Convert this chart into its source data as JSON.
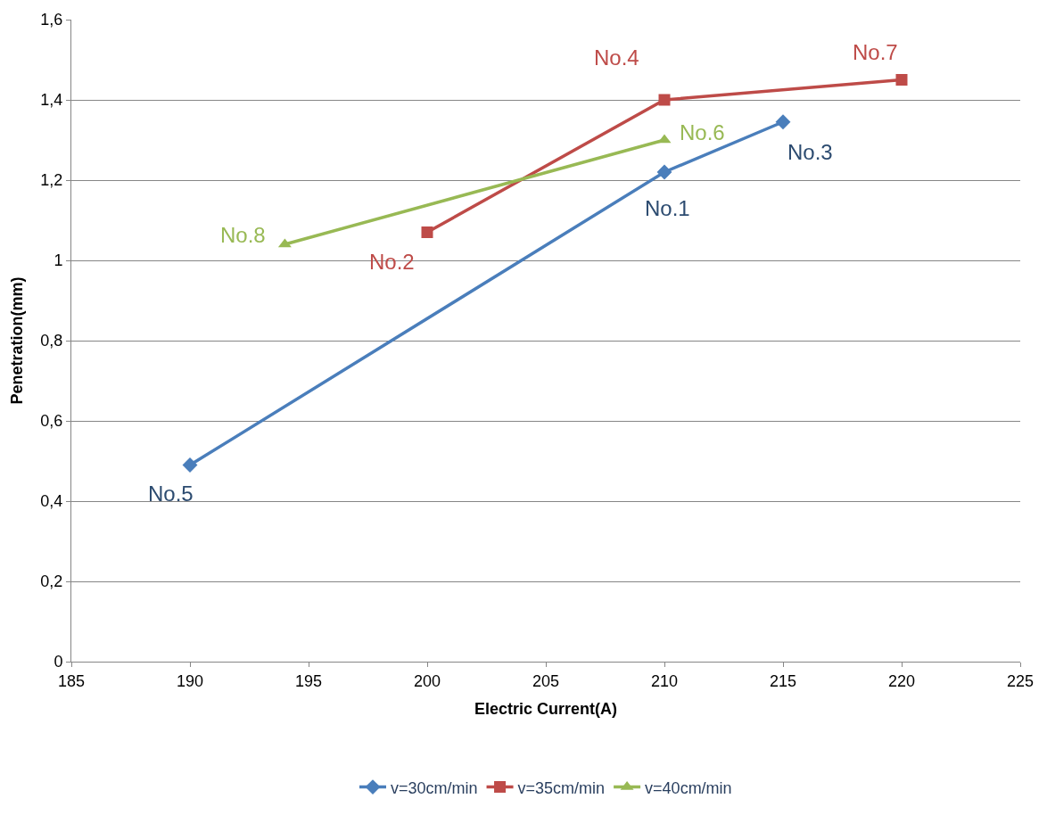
{
  "chart_data": {
    "type": "line",
    "xlabel": "Electric Current(A)",
    "ylabel": "Penetration(mm)",
    "xlim": [
      185,
      225
    ],
    "xticks": [
      185,
      190,
      195,
      200,
      205,
      210,
      215,
      220,
      225
    ],
    "ylim": [
      0,
      1.6
    ],
    "yticks": [
      0,
      {
        "value": 0.2,
        "label": "0,2"
      },
      {
        "value": 0.4,
        "label": "0,4"
      },
      {
        "value": 0.6,
        "label": "0,6"
      },
      {
        "value": 0.8,
        "label": "0,8"
      },
      1,
      {
        "value": 1.2,
        "label": "1,2"
      },
      {
        "value": 1.4,
        "label": "1,4"
      },
      {
        "value": 1.6,
        "label": "1,6"
      }
    ],
    "grid": "y",
    "legend": "bottom",
    "series": [
      {
        "name": "v=30cm/min",
        "color": "#4a7ebb",
        "marker": "diamond",
        "x": [
          190,
          210,
          215
        ],
        "values": [
          0.49,
          1.22,
          1.345
        ]
      },
      {
        "name": "v=35cm/min",
        "color": "#be4b48",
        "marker": "square",
        "x": [
          200,
          210,
          220
        ],
        "values": [
          1.07,
          1.4,
          1.45
        ]
      },
      {
        "name": "v=40cm/min",
        "color": "#98b954",
        "marker": "triangle",
        "x": [
          194,
          210
        ],
        "values": [
          1.04,
          1.3
        ]
      }
    ],
    "annotations": [
      {
        "text": "No.5",
        "x": 190,
        "y": 0.49
      },
      {
        "text": "No.1",
        "x": 210,
        "y": 1.22
      },
      {
        "text": "No.3",
        "x": 215,
        "y": 1.345
      },
      {
        "text": "No.2",
        "x": 200,
        "y": 1.07
      },
      {
        "text": "No.4",
        "x": 210,
        "y": 1.4
      },
      {
        "text": "No.7",
        "x": 220,
        "y": 1.45
      },
      {
        "text": "No.6",
        "x": 210,
        "y": 1.3
      },
      {
        "text": "No.8",
        "x": 194,
        "y": 1.04
      }
    ]
  }
}
